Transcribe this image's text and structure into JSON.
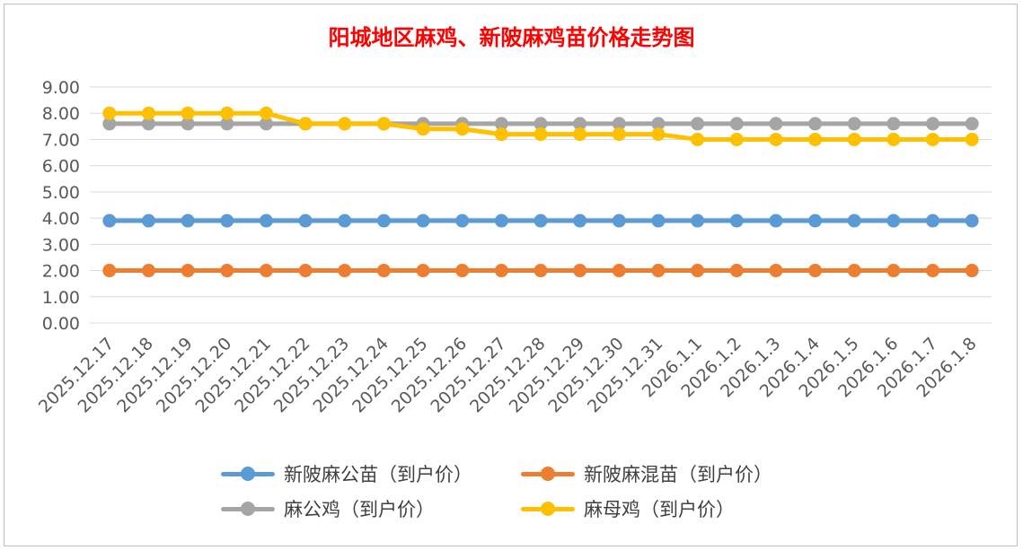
{
  "chart_data": {
    "type": "line",
    "title": "阳城地区麻鸡、新陂麻鸡苗价格走势图",
    "xlabel": "",
    "ylabel": "",
    "ylim": [
      0,
      9
    ],
    "yticks": [
      "0.00",
      "1.00",
      "2.00",
      "3.00",
      "4.00",
      "5.00",
      "6.00",
      "7.00",
      "8.00",
      "9.00"
    ],
    "categories": [
      "2025.12.17",
      "2025.12.18",
      "2025.12.19",
      "2025.12.20",
      "2025.12.21",
      "2025.12.22",
      "2025.12.23",
      "2025.12.24",
      "2025.12.25",
      "2025.12.26",
      "2025.12.27",
      "2025.12.28",
      "2025.12.29",
      "2025.12.30",
      "2025.12.31",
      "2026.1.1",
      "2026.1.2",
      "2026.1.3",
      "2026.1.4",
      "2026.1.5",
      "2026.1.6",
      "2026.1.7",
      "2026.1.8"
    ],
    "grid": true,
    "legend_position": "bottom",
    "series": [
      {
        "name": "新陂麻公苗（到户价）",
        "color": "#5b9bd5",
        "values": [
          3.9,
          3.9,
          3.9,
          3.9,
          3.9,
          3.9,
          3.9,
          3.9,
          3.9,
          3.9,
          3.9,
          3.9,
          3.9,
          3.9,
          3.9,
          3.9,
          3.9,
          3.9,
          3.9,
          3.9,
          3.9,
          3.9,
          3.9
        ]
      },
      {
        "name": "新陂麻混苗（到户价）",
        "color": "#ed7d31",
        "values": [
          2.0,
          2.0,
          2.0,
          2.0,
          2.0,
          2.0,
          2.0,
          2.0,
          2.0,
          2.0,
          2.0,
          2.0,
          2.0,
          2.0,
          2.0,
          2.0,
          2.0,
          2.0,
          2.0,
          2.0,
          2.0,
          2.0,
          2.0
        ]
      },
      {
        "name": "麻公鸡（到户价）",
        "color": "#a5a5a5",
        "values": [
          7.6,
          7.6,
          7.6,
          7.6,
          7.6,
          7.6,
          7.6,
          7.6,
          7.6,
          7.6,
          7.6,
          7.6,
          7.6,
          7.6,
          7.6,
          7.6,
          7.6,
          7.6,
          7.6,
          7.6,
          7.6,
          7.6,
          7.6
        ]
      },
      {
        "name": "麻母鸡（到户价）",
        "color": "#ffc000",
        "values": [
          8.0,
          8.0,
          8.0,
          8.0,
          8.0,
          7.6,
          7.6,
          7.6,
          7.4,
          7.4,
          7.2,
          7.2,
          7.2,
          7.2,
          7.2,
          7.0,
          7.0,
          7.0,
          7.0,
          7.0,
          7.0,
          7.0,
          7.0
        ]
      }
    ]
  }
}
